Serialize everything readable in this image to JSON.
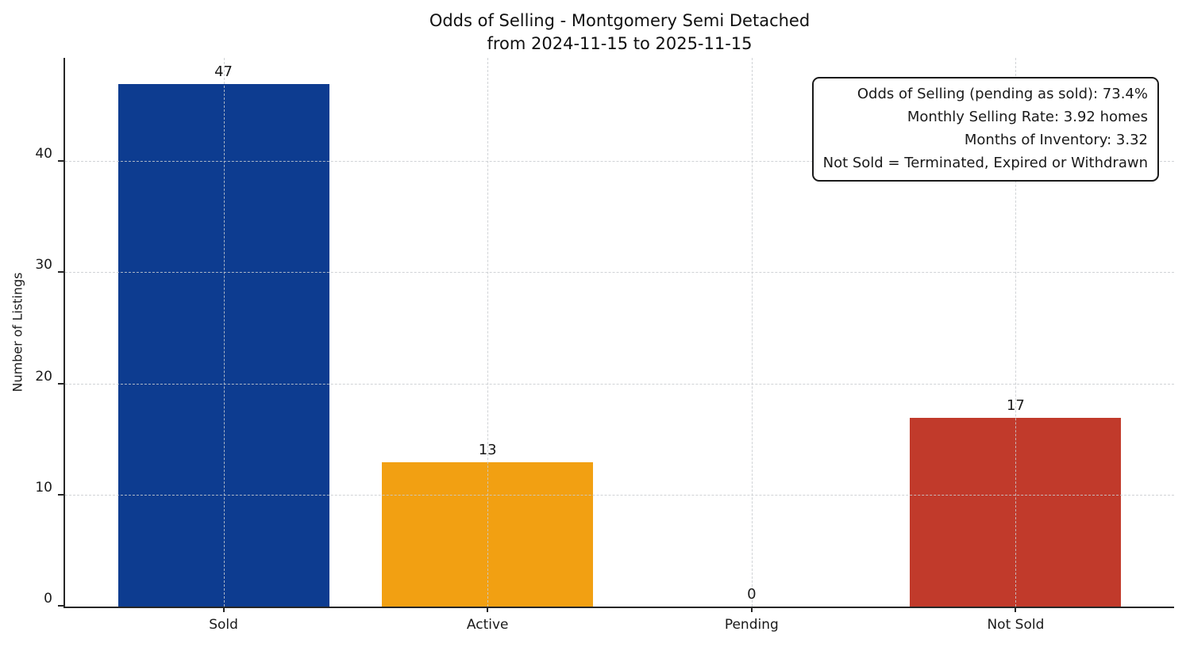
{
  "chart_data": {
    "type": "bar",
    "title": "Odds of Selling - Montgomery Semi Detached",
    "subtitle": "from 2024-11-15 to 2025-11-15",
    "categories": [
      "Sold",
      "Active",
      "Pending",
      "Not Sold"
    ],
    "values": [
      47,
      13,
      0,
      17
    ],
    "bar_colors": [
      "#0d3c90",
      "#f2a012",
      null,
      "#c13a2b"
    ],
    "value_labels": [
      "47",
      "13",
      "0",
      "17"
    ],
    "xlabel": "",
    "ylabel": "Number of Listings",
    "yticks": [
      0,
      10,
      20,
      30,
      40
    ],
    "ylim": [
      0,
      49.35
    ],
    "grid": "dashed, both axes, drawn over bars",
    "legend": "none",
    "annotation": {
      "lines": [
        "Odds of Selling (pending as sold): 73.4%",
        "Monthly Selling Rate: 3.92 homes",
        "Months of Inventory: 3.32",
        "Not Sold = Terminated, Expired or Withdrawn"
      ]
    }
  },
  "colors": {
    "sold_bar": "#0d3c90",
    "active_bar": "#f2a012",
    "not_sold_bar": "#c13a2b",
    "spine": "#262626",
    "text": "#1a1a1a",
    "background": "#ffffff"
  }
}
